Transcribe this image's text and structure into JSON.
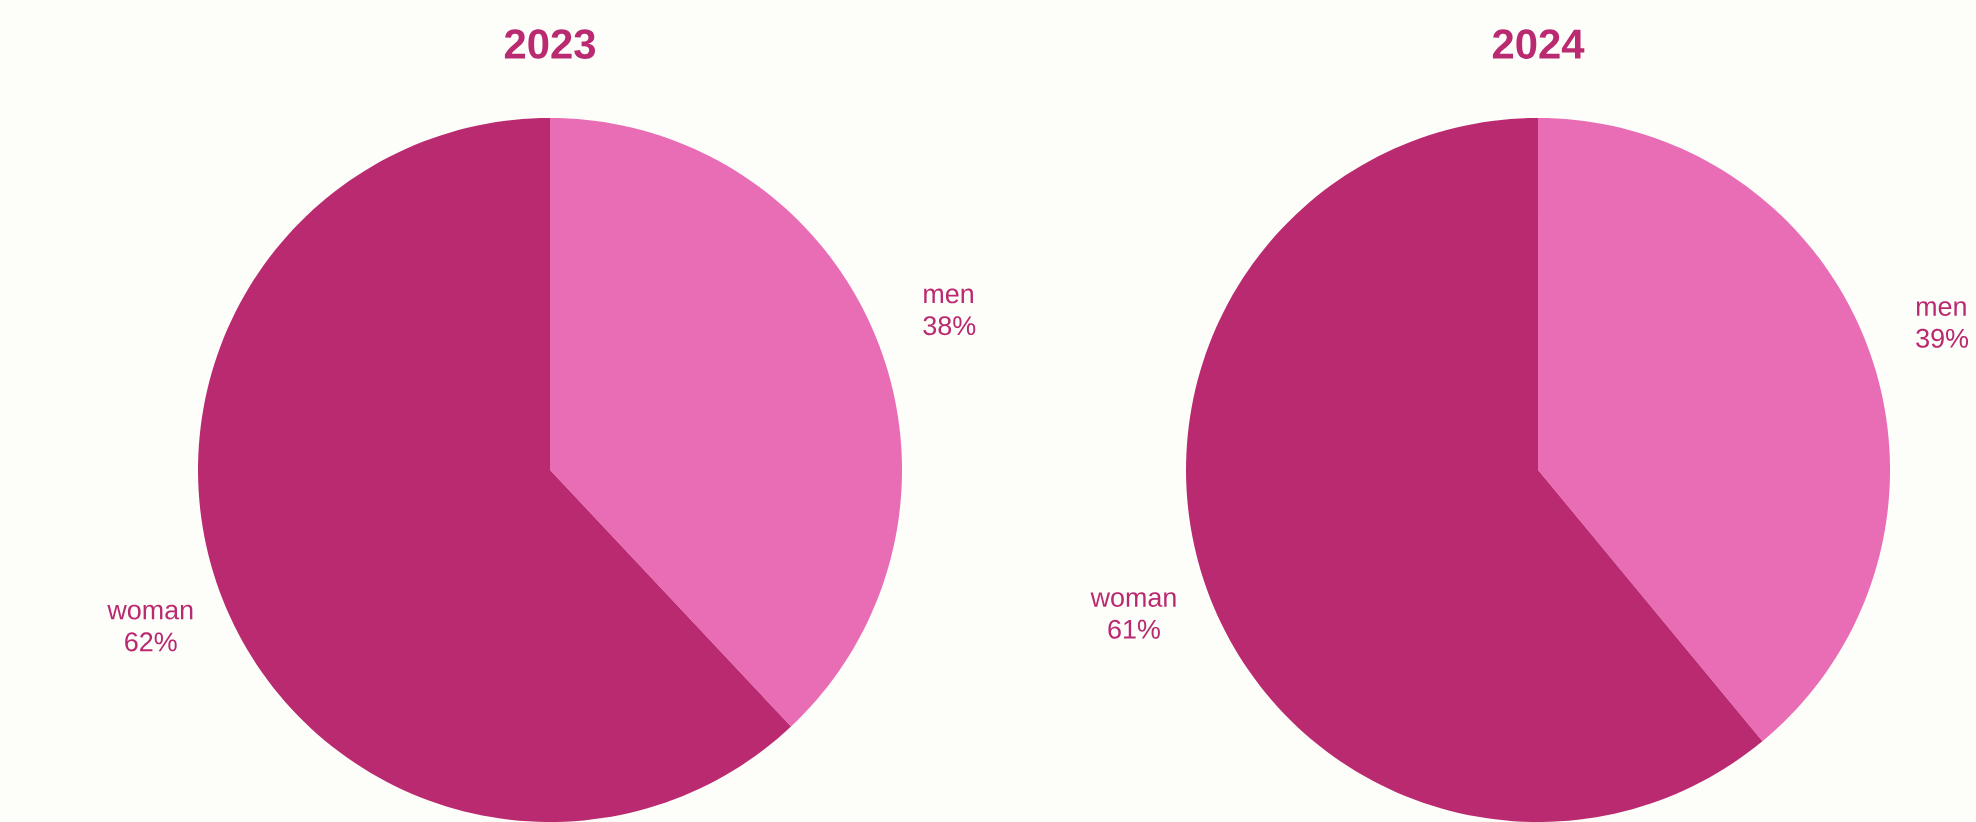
{
  "chart_data": [
    {
      "type": "pie",
      "title": "2023",
      "categories": [
        "men",
        "woman"
      ],
      "values": [
        38,
        62
      ],
      "colors": [
        "#e96db5",
        "#b92a70"
      ],
      "value_labels": [
        "38%",
        "62%"
      ]
    },
    {
      "type": "pie",
      "title": "2024",
      "categories": [
        "men",
        "woman"
      ],
      "values": [
        39,
        61
      ],
      "colors": [
        "#e96db5",
        "#b92a70"
      ],
      "value_labels": [
        "39%",
        "61%"
      ]
    }
  ]
}
